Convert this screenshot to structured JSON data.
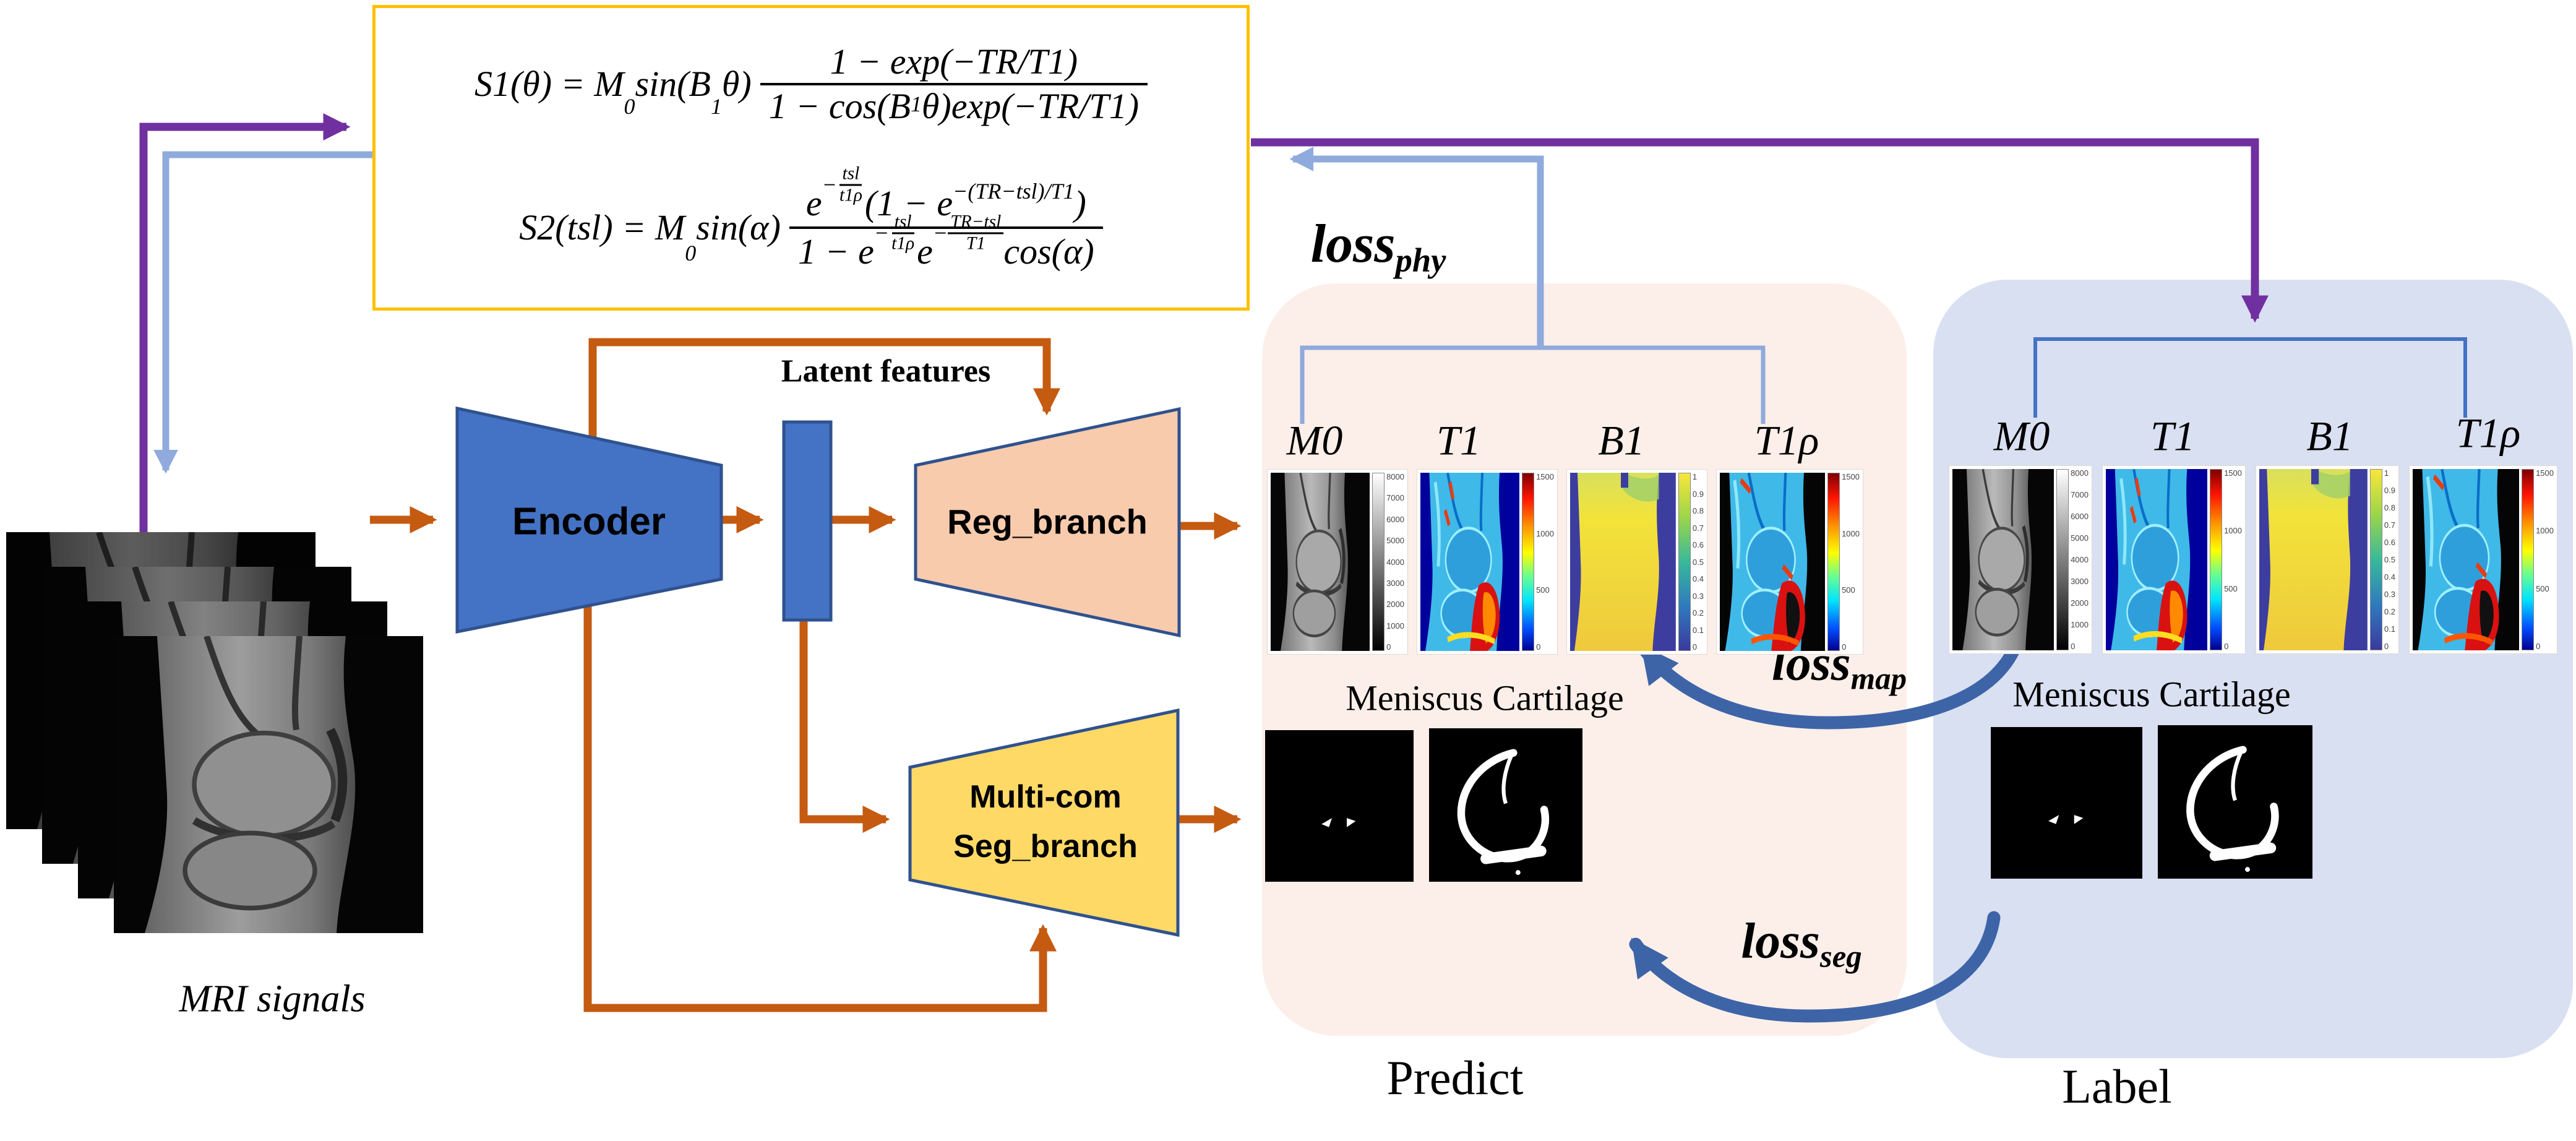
{
  "colors": {
    "accent_orange": "#C55A11",
    "accent_purple": "#7030A0",
    "accent_lightblue": "#8FAADC",
    "accent_navy": "#3E64A8",
    "encoder_fill": "#4472C4",
    "reg_fill": "#F8CBAD",
    "seg_fill": "#FFD966",
    "eq_border": "#FFC000",
    "predict_bg": "#FCEFE9",
    "label_bg": "#D9E0F2"
  },
  "equations": {
    "eq1": {
      "pre": "S1(θ) = M",
      "sub0": "0",
      "mid": "sin(B",
      "sub1": "1",
      "mid2": "θ)",
      "num": "1 − exp(−TR/T1)",
      "den_a": "1 − cos(B",
      "den_sub": "1",
      "den_b": "θ)exp(−TR/T1)"
    },
    "eq2": {
      "pre": "S2(tsl) = M",
      "sub0": "0",
      "mid": "sin(α)",
      "num_e": "e",
      "num_exp_sign": "−",
      "num_exp_top": "tsl",
      "num_exp_bot": "t1ρ",
      "num_b": "(1 − e",
      "num_exp2": "−(TR−tsl)/T1",
      "num_c": ")",
      "den_a": "1 − e",
      "den_exp1_sign": "−",
      "den_exp1_top": "tsl",
      "den_exp1_bot": "t1ρ",
      "den_e2": "e",
      "den_exp2_sign": "−",
      "den_exp2_top": "TR−tsl",
      "den_exp2_bot": "T1",
      "den_b": "cos(α)"
    }
  },
  "network": {
    "encoder": "Encoder",
    "latent": "Latent features",
    "reg_branch": "Reg_branch",
    "seg_branch_line1": "Multi-com",
    "seg_branch_line2": "Seg_branch"
  },
  "input": {
    "label": "MRI signals"
  },
  "losses": {
    "phy": {
      "main": "loss",
      "sub": "phy"
    },
    "map": {
      "main": "loss",
      "sub": "map"
    },
    "seg": {
      "main": "loss",
      "sub": "seg"
    }
  },
  "predict": {
    "caption": "Predict",
    "seg_title": "Meniscus Cartilage",
    "maps": [
      {
        "name": "M0",
        "ticks": [
          "8000",
          "7000",
          "6000",
          "5000",
          "4000",
          "3000",
          "2000",
          "1000",
          "0"
        ]
      },
      {
        "name": "T1",
        "ticks": [
          "1500",
          "1000",
          "500",
          "0"
        ]
      },
      {
        "name": "B1",
        "ticks": [
          "1",
          "0.9",
          "0.8",
          "0.7",
          "0.6",
          "0.5",
          "0.4",
          "0.3",
          "0.2",
          "0.1",
          "0"
        ]
      },
      {
        "name": "T1ρ",
        "ticks": [
          "1500",
          "1000",
          "500",
          "0"
        ]
      }
    ]
  },
  "label": {
    "caption": "Label",
    "seg_title": "Meniscus Cartilage",
    "maps": [
      {
        "name": "M0",
        "ticks": [
          "8000",
          "7000",
          "6000",
          "5000",
          "4000",
          "3000",
          "2000",
          "1000",
          "0"
        ]
      },
      {
        "name": "T1",
        "ticks": [
          "1500",
          "1000",
          "500",
          "0"
        ]
      },
      {
        "name": "B1",
        "ticks": [
          "1",
          "0.9",
          "0.8",
          "0.7",
          "0.6",
          "0.5",
          "0.4",
          "0.3",
          "0.2",
          "0.1",
          "0"
        ]
      },
      {
        "name": "T1ρ",
        "ticks": [
          "1500",
          "1000",
          "500",
          "0"
        ]
      }
    ]
  }
}
